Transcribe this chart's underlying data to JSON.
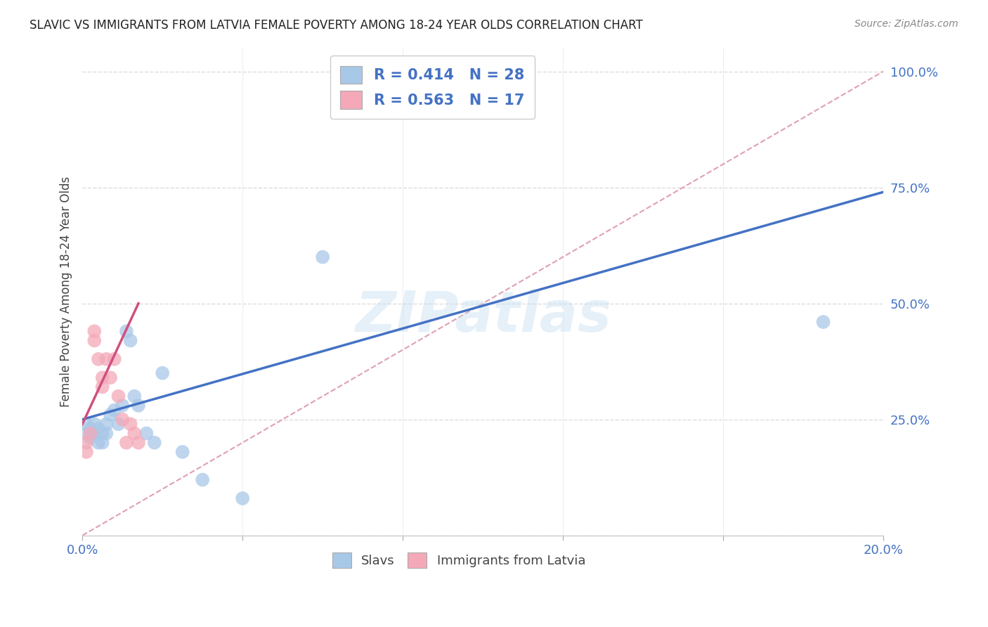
{
  "title": "SLAVIC VS IMMIGRANTS FROM LATVIA FEMALE POVERTY AMONG 18-24 YEAR OLDS CORRELATION CHART",
  "source": "Source: ZipAtlas.com",
  "ylabel": "Female Poverty Among 18-24 Year Olds",
  "xlim": [
    0.0,
    0.2
  ],
  "ylim": [
    0.0,
    1.05
  ],
  "slavs_R": 0.414,
  "slavs_N": 28,
  "latvia_R": 0.563,
  "latvia_N": 17,
  "slavs_color": "#a8c8e8",
  "latvia_color": "#f4a8b8",
  "slavs_line_color": "#4472c4",
  "latvia_line_color": "#d05080",
  "diagonal_color": "#e0a0b0",
  "legend_text_color": "#4472c4",
  "watermark": "ZIPatlas",
  "background_color": "#ffffff",
  "grid_color": "#dddddd",
  "slavs_x": [
    0.001,
    0.001,
    0.002,
    0.002,
    0.003,
    0.003,
    0.004,
    0.004,
    0.005,
    0.005,
    0.006,
    0.006,
    0.007,
    0.008,
    0.009,
    0.01,
    0.011,
    0.012,
    0.013,
    0.014,
    0.016,
    0.018,
    0.02,
    0.025,
    0.03,
    0.04,
    0.06,
    0.185
  ],
  "slavs_y": [
    0.24,
    0.22,
    0.23,
    0.21,
    0.24,
    0.22,
    0.23,
    0.2,
    0.22,
    0.2,
    0.24,
    0.22,
    0.26,
    0.27,
    0.24,
    0.28,
    0.44,
    0.42,
    0.3,
    0.28,
    0.22,
    0.2,
    0.35,
    0.18,
    0.12,
    0.08,
    0.6,
    0.46
  ],
  "latvia_x": [
    0.001,
    0.001,
    0.002,
    0.003,
    0.003,
    0.004,
    0.005,
    0.005,
    0.006,
    0.007,
    0.008,
    0.009,
    0.01,
    0.011,
    0.012,
    0.013,
    0.014
  ],
  "latvia_y": [
    0.2,
    0.18,
    0.22,
    0.44,
    0.42,
    0.38,
    0.34,
    0.32,
    0.38,
    0.34,
    0.38,
    0.3,
    0.25,
    0.2,
    0.24,
    0.22,
    0.2
  ],
  "slavs_line_x": [
    0.0,
    0.2
  ],
  "slavs_line_y": [
    0.25,
    0.74
  ],
  "latvia_line_x": [
    0.0,
    0.014
  ],
  "latvia_line_y": [
    0.24,
    0.5
  ]
}
